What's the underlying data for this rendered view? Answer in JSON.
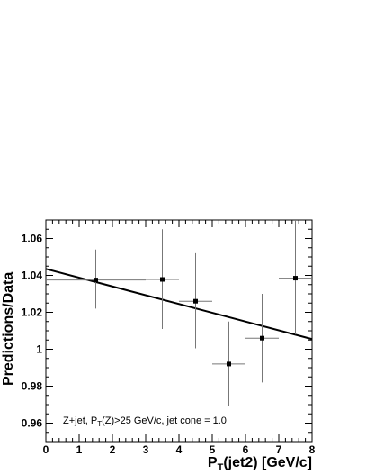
{
  "chart_data": {
    "type": "scatter",
    "xlabel_main": "P",
    "xlabel_sub": "T",
    "xlabel_rest": "(jet2) [GeV/c]",
    "ylabel": "Predictions/Data",
    "xlim": [
      0,
      8
    ],
    "ylim": [
      0.95,
      1.07
    ],
    "x_ticks": [
      "0",
      "1",
      "2",
      "3",
      "4",
      "5",
      "6",
      "7",
      "8"
    ],
    "y_ticks": [
      "0.96",
      "0.98",
      "1",
      "1.02",
      "1.04",
      "1.06"
    ],
    "annotation": {
      "prefix": "Z+jet, P",
      "sub": "T",
      "suffix": "(Z)>25 GeV/c, jet cone = 1.0"
    },
    "points": [
      {
        "x": 1.5,
        "y": 1.0375,
        "xerr": 1.5,
        "ylow": 1.022,
        "yhigh": 1.054
      },
      {
        "x": 3.5,
        "y": 1.0378,
        "xerr": 0.5,
        "ylow": 1.011,
        "yhigh": 1.065
      },
      {
        "x": 4.5,
        "y": 1.026,
        "xerr": 0.5,
        "ylow": 1.0005,
        "yhigh": 1.052
      },
      {
        "x": 5.5,
        "y": 0.992,
        "xerr": 0.5,
        "ylow": 0.969,
        "yhigh": 1.015
      },
      {
        "x": 6.5,
        "y": 1.006,
        "xerr": 0.5,
        "ylow": 0.982,
        "yhigh": 1.03
      },
      {
        "x": 7.5,
        "y": 1.0385,
        "xerr": 0.5,
        "ylow": 1.008,
        "yhigh": 1.07
      }
    ],
    "fit_line": {
      "x": [
        0,
        8
      ],
      "y": [
        1.0435,
        1.0055
      ]
    }
  }
}
